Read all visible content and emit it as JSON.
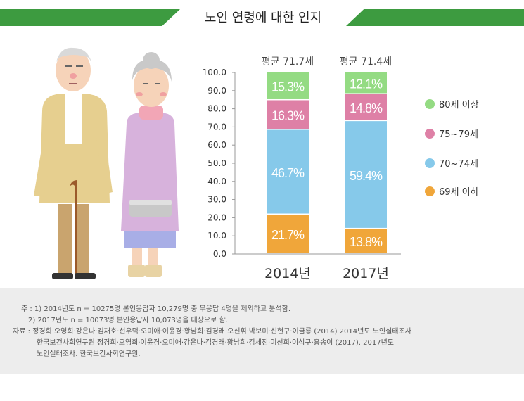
{
  "page_title": "노인 연령에 대한 인지",
  "chart_data": {
    "type": "bar",
    "stacked": true,
    "categories": [
      "2014년",
      "2017년"
    ],
    "averages": [
      "평균 71.7세",
      "평균 71.4세"
    ],
    "series": [
      {
        "name": "69세 이하",
        "values": [
          21.7,
          13.8
        ],
        "labels": [
          "21.7%",
          "13.8%"
        ],
        "color": "#f0a63a"
      },
      {
        "name": "70~74세",
        "values": [
          46.7,
          59.4
        ],
        "labels": [
          "46.7%",
          "59.4%"
        ],
        "color": "#86c9ea"
      },
      {
        "name": "75~79세",
        "values": [
          16.3,
          14.8
        ],
        "labels": [
          "16.3%",
          "14.8%"
        ],
        "color": "#de80a6"
      },
      {
        "name": "80세 이상",
        "values": [
          15.3,
          12.1
        ],
        "labels": [
          "15.3%",
          "12.1%"
        ],
        "color": "#94db83"
      }
    ],
    "ylim": [
      0,
      100
    ],
    "yticks": [
      "0.0",
      "10.0",
      "20.0",
      "30.0",
      "40.0",
      "50.0",
      "60.0",
      "70.0",
      "80.0",
      "90.0",
      "100.0"
    ],
    "legend_position": "right",
    "legend_order": [
      "80세 이상",
      "75~79세",
      "70~74세",
      "69세 이하"
    ]
  },
  "notes": {
    "line1": "주 : 1) 2014년도 n = 10275명 본인응답자 10,279명 중 무응답 4명을 제외하고 분석함.",
    "line2": "2) 2017년도 n = 10073명 본인응답자 10,073명을 대상으로 함.",
    "line3": "자료 : 정경희·오영희·강은나·김재호·선우덕·오미애·이윤경·황남희·김경래·오신휘·박보미·신현구·이금룡 (2014) 2014년도 노인실태조사",
    "line4": "한국보건사회연구원    정경희·오영희·이윤경·오미애·강은나·김경래·황남희·김세진·이선희·이석구·홍송이 (2017). 2017년도",
    "line5": "노인실태조사. 한국보건사회연구원."
  }
}
